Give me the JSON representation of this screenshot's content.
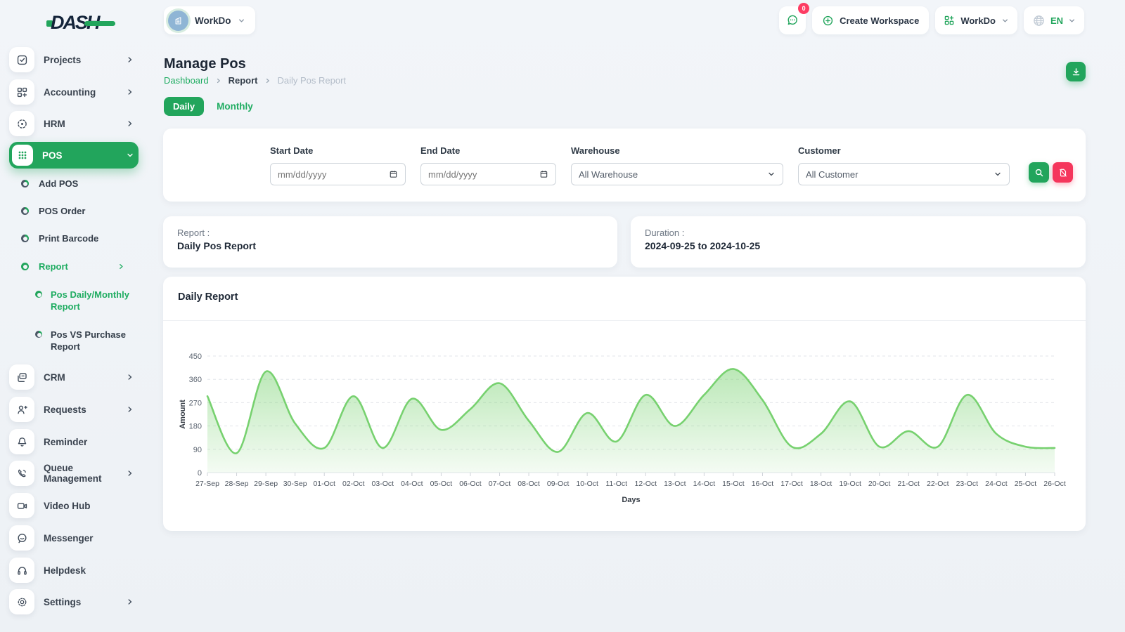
{
  "colors": {
    "primary": "#22a55c",
    "chart_line": "#77d16f",
    "danger": "#f5365c",
    "badge": "#fd3c63",
    "avatar_bg": "#8fb5d5"
  },
  "brand": {
    "logo_text": "DASH"
  },
  "header": {
    "workspace_name": "WorkDo",
    "messages_badge": "0",
    "create_workspace_label": "Create Workspace",
    "user_menu_label": "WorkDo",
    "language": "EN"
  },
  "sidebar": {
    "items": [
      {
        "label": "Projects"
      },
      {
        "label": "Accounting"
      },
      {
        "label": "HRM"
      },
      {
        "label": "POS"
      },
      {
        "label": "CRM"
      },
      {
        "label": "Requests"
      },
      {
        "label": "Reminder"
      },
      {
        "label": "Queue Management"
      },
      {
        "label": "Video Hub"
      },
      {
        "label": "Messenger"
      },
      {
        "label": "Helpdesk"
      },
      {
        "label": "Settings"
      }
    ],
    "pos_sub": [
      "Add POS",
      "POS Order",
      "Print Barcode",
      "Report"
    ],
    "report_sub": [
      "Pos Daily/Monthly Report",
      "Pos VS Purchase Report"
    ]
  },
  "page": {
    "title": "Manage Pos",
    "breadcrumb": [
      "Dashboard",
      "Report",
      "Daily Pos Report"
    ],
    "tabs": [
      "Daily",
      "Monthly"
    ]
  },
  "filters": {
    "start_date": {
      "label": "Start Date",
      "placeholder": "mm/dd/yyyy"
    },
    "end_date": {
      "label": "End Date",
      "placeholder": "mm/dd/yyyy"
    },
    "warehouse": {
      "label": "Warehouse",
      "value": "All Warehouse"
    },
    "customer": {
      "label": "Customer",
      "value": "All Customer"
    }
  },
  "summary": {
    "report_label": "Report :",
    "report_value": "Daily Pos Report",
    "duration_label": "Duration :",
    "duration_value": "2024-09-25 to 2024-10-25"
  },
  "chart_data": {
    "type": "area",
    "title": "Daily Report",
    "xlabel": "Days",
    "ylabel": "Amount",
    "ylim": [
      0,
      450
    ],
    "yticks": [
      0,
      90,
      180,
      270,
      360,
      450
    ],
    "grid": "dashed-horizontal",
    "legend": false,
    "line_color": "#77d16f",
    "fill_color": "#77d16f",
    "categories": [
      "27-Sep",
      "28-Sep",
      "29-Sep",
      "30-Sep",
      "01-Oct",
      "02-Oct",
      "03-Oct",
      "04-Oct",
      "05-Oct",
      "06-Oct",
      "07-Oct",
      "08-Oct",
      "09-Oct",
      "10-Oct",
      "11-Oct",
      "12-Oct",
      "13-Oct",
      "14-Oct",
      "15-Oct",
      "16-Oct",
      "17-Oct",
      "18-Oct",
      "19-Oct",
      "20-Oct",
      "21-Oct",
      "22-Oct",
      "23-Oct",
      "24-Oct",
      "25-Oct",
      "26-Oct"
    ],
    "values": [
      295,
      75,
      390,
      190,
      95,
      295,
      95,
      285,
      165,
      245,
      345,
      200,
      80,
      230,
      120,
      300,
      180,
      300,
      400,
      280,
      100,
      150,
      275,
      100,
      160,
      100,
      300,
      150,
      100,
      95
    ]
  }
}
